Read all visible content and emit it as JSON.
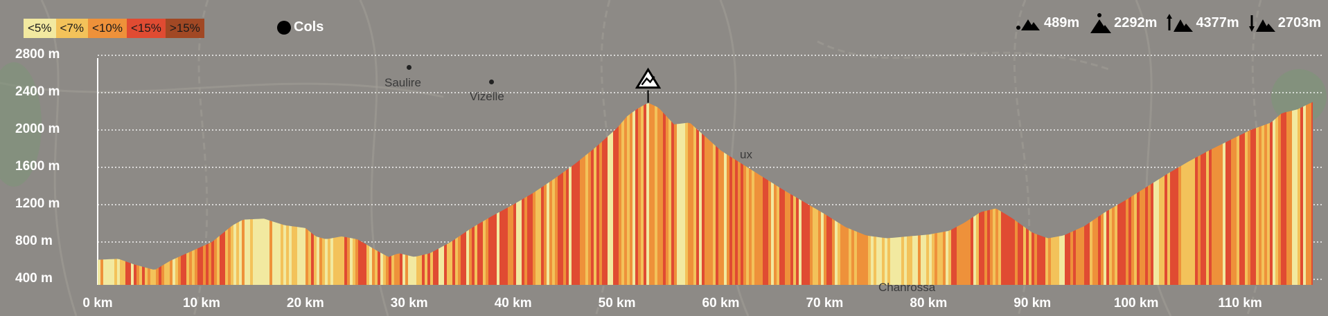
{
  "legend": [
    {
      "label": "<5%",
      "color": "#f2e9a0"
    },
    {
      "label": "<7%",
      "color": "#f3c25a"
    },
    {
      "label": "<10%",
      "color": "#ee913a"
    },
    {
      "label": "<15%",
      "color": "#e04b32"
    },
    {
      "label": ">15%",
      "color": "#a14824"
    }
  ],
  "cols_label": "Cols",
  "stats": {
    "min_alt": "489m",
    "max_alt": "2292m",
    "ascent": "4377m",
    "descent": "2703m"
  },
  "icons": {
    "min": "min-altitude-icon",
    "max": "max-altitude-icon",
    "ascent": "ascent-icon",
    "descent": "descent-icon",
    "summit": "summit-marker-icon"
  },
  "map_labels": [
    {
      "name": "Saulire"
    },
    {
      "name": "Vizelle"
    },
    {
      "name": "Chanrossa"
    },
    {
      "name": "ux"
    }
  ],
  "chart_data": {
    "type": "area",
    "xlabel": "",
    "ylabel": "",
    "xlim": [
      0,
      117
    ],
    "ylim": [
      350,
      2900
    ],
    "x_ticks": [
      0,
      10,
      20,
      30,
      40,
      50,
      60,
      70,
      80,
      90,
      100,
      110
    ],
    "x_tick_labels": [
      "0 km",
      "10 km",
      "20 km",
      "30 km",
      "40 km",
      "50 km",
      "60 km",
      "70 km",
      "80 km",
      "90 km",
      "100 km",
      "110 km"
    ],
    "y_ticks": [
      400,
      800,
      1200,
      1600,
      2000,
      2400,
      2800
    ],
    "y_tick_labels": [
      "400 m",
      "800 m",
      "1200 m",
      "1600 m",
      "2000 m",
      "2400 m",
      "2800 m"
    ],
    "grid": "horizontal dotted",
    "series": [
      {
        "points": [
          [
            0,
            610
          ],
          [
            2,
            620
          ],
          [
            3.5,
            560
          ],
          [
            5.5,
            500
          ],
          [
            7,
            600
          ],
          [
            9,
            700
          ],
          [
            11,
            800
          ],
          [
            13,
            980
          ],
          [
            14,
            1040
          ],
          [
            16,
            1050
          ],
          [
            18,
            980
          ],
          [
            20,
            950
          ],
          [
            21,
            860
          ],
          [
            22,
            830
          ],
          [
            23.5,
            860
          ],
          [
            25,
            830
          ],
          [
            27,
            700
          ],
          [
            28,
            640
          ],
          [
            29,
            680
          ],
          [
            30.5,
            640
          ],
          [
            32,
            680
          ],
          [
            34,
            800
          ],
          [
            36,
            950
          ],
          [
            38,
            1080
          ],
          [
            40,
            1200
          ],
          [
            42,
            1330
          ],
          [
            44,
            1480
          ],
          [
            46,
            1640
          ],
          [
            48,
            1820
          ],
          [
            50,
            2020
          ],
          [
            51,
            2150
          ],
          [
            52,
            2230
          ],
          [
            53,
            2292
          ],
          [
            54,
            2240
          ],
          [
            55.5,
            2060
          ],
          [
            57,
            2080
          ],
          [
            58,
            1980
          ],
          [
            60,
            1780
          ],
          [
            62,
            1640
          ],
          [
            64,
            1500
          ],
          [
            66,
            1360
          ],
          [
            68,
            1230
          ],
          [
            70,
            1100
          ],
          [
            72,
            960
          ],
          [
            74,
            870
          ],
          [
            76,
            840
          ],
          [
            78,
            860
          ],
          [
            80,
            880
          ],
          [
            82,
            920
          ],
          [
            83.5,
            1010
          ],
          [
            85,
            1120
          ],
          [
            86.5,
            1160
          ],
          [
            88,
            1060
          ],
          [
            90,
            900
          ],
          [
            91.5,
            840
          ],
          [
            93,
            870
          ],
          [
            95,
            970
          ],
          [
            97,
            1120
          ],
          [
            99,
            1250
          ],
          [
            101,
            1390
          ],
          [
            103,
            1530
          ],
          [
            105,
            1660
          ],
          [
            107,
            1780
          ],
          [
            109,
            1890
          ],
          [
            111,
            2000
          ],
          [
            113,
            2080
          ],
          [
            114,
            2180
          ],
          [
            115.5,
            2220
          ],
          [
            117,
            2300
          ]
        ]
      }
    ],
    "summit": {
      "km": 53,
      "alt": 2292
    }
  }
}
